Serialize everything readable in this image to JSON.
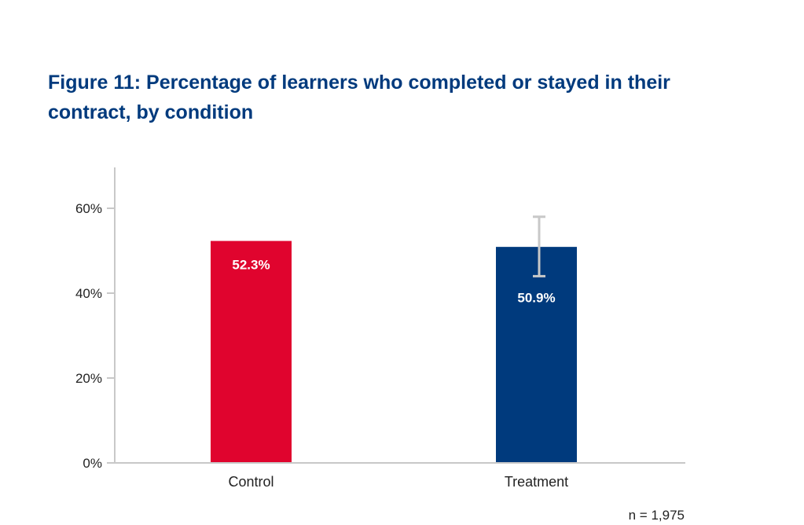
{
  "chart_data": {
    "type": "bar",
    "title": "Figure 11: Percentage of learners who completed or stayed in their contract, by condition",
    "xlabel": "",
    "ylabel": "",
    "categories": [
      "Control",
      "Treatment"
    ],
    "values": [
      52.3,
      50.9
    ],
    "value_labels": [
      "52.3%",
      "50.9%"
    ],
    "bar_colors": [
      "#e0042e",
      "#003a7d"
    ],
    "error_bars": [
      null,
      {
        "low": 44,
        "high": 58
      }
    ],
    "error_bar_color": "#c8c8c8",
    "ylim": [
      0,
      70
    ],
    "yticks": [
      0,
      20,
      40,
      60
    ],
    "ytick_labels": [
      "0%",
      "20%",
      "40%",
      "60%"
    ],
    "grid": false,
    "legend": "none",
    "note": "n = 1,975"
  }
}
